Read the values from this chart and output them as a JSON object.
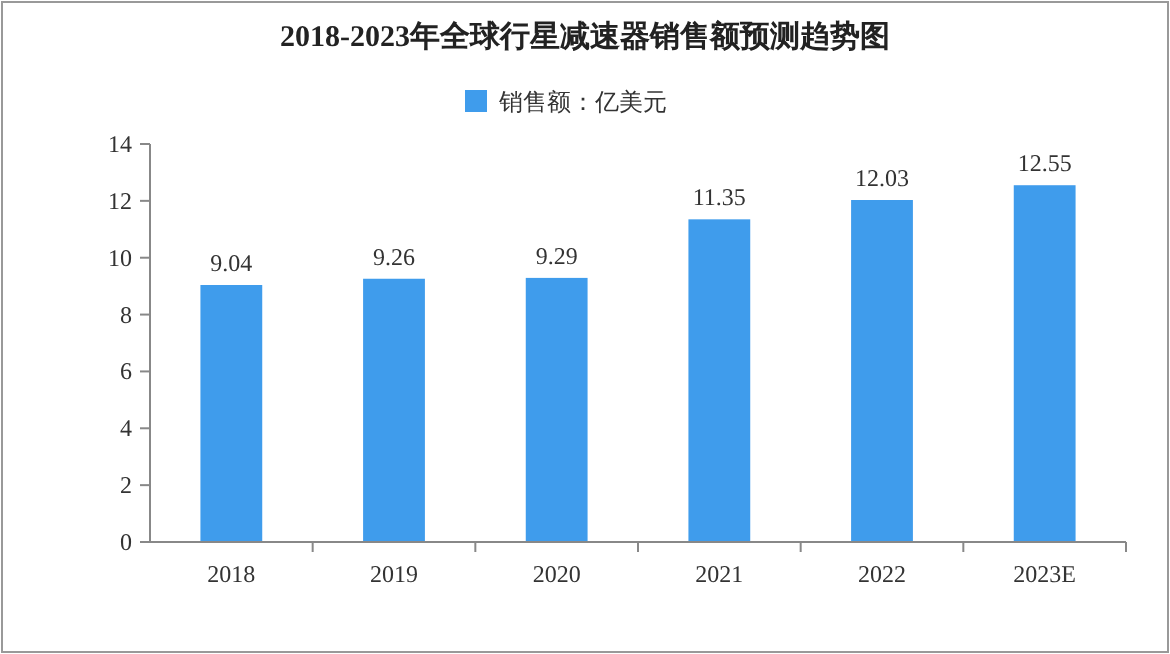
{
  "chart_data": {
    "type": "bar",
    "title": "2018-2023年全球行星减速器销售额预测趋势图",
    "categories": [
      "2018",
      "2019",
      "2020",
      "2021",
      "2022",
      "2023E"
    ],
    "series": [
      {
        "name": "销售额：亿美元",
        "color": "#3f9cec",
        "values": [
          9.04,
          9.26,
          9.29,
          11.35,
          12.03,
          12.55
        ]
      }
    ],
    "ylim": [
      0,
      14
    ],
    "yticks": [
      0,
      2,
      4,
      6,
      8,
      10,
      12,
      14
    ],
    "grid": false,
    "legend": "top",
    "data_labels": true
  }
}
